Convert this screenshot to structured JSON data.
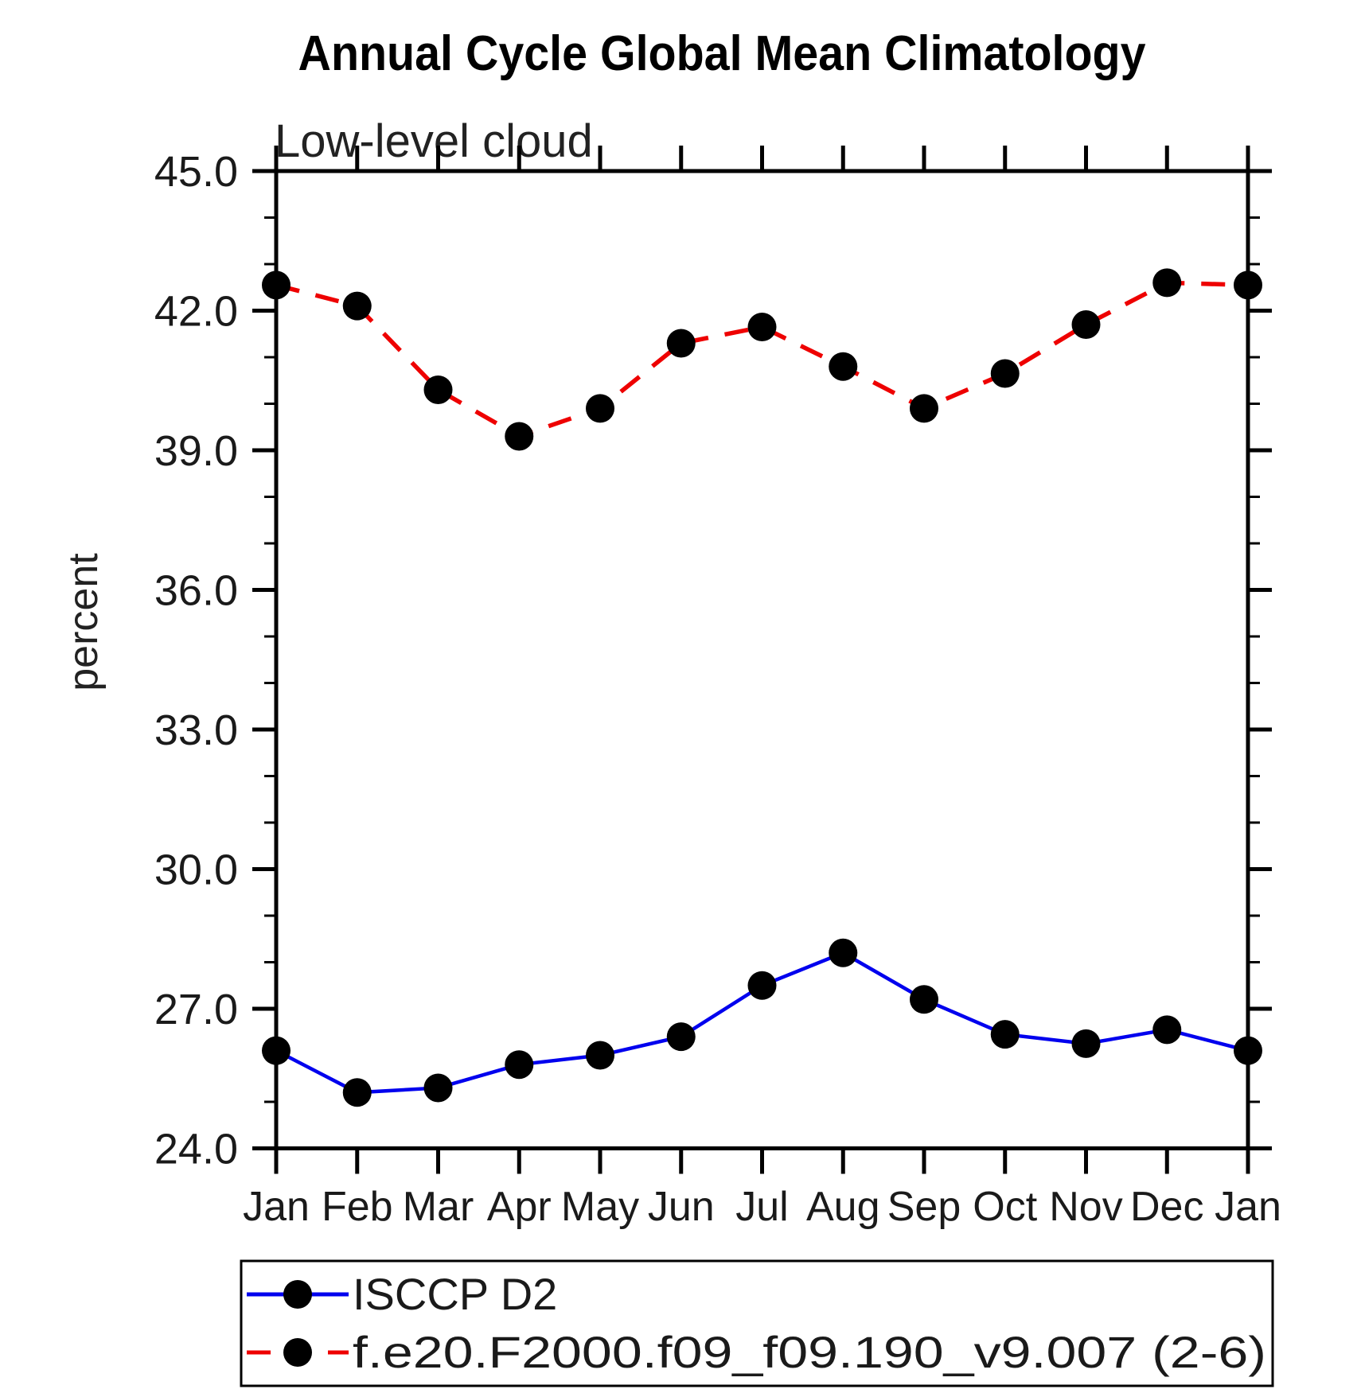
{
  "title": "Annual Cycle Global Mean Climatology",
  "subtitle": "Low-level cloud",
  "ylabel": "percent",
  "chart_data": {
    "type": "line",
    "x_categories": [
      "Jan",
      "Feb",
      "Mar",
      "Apr",
      "May",
      "Jun",
      "Jul",
      "Aug",
      "Sep",
      "Oct",
      "Nov",
      "Dec",
      "Jan"
    ],
    "series": [
      {
        "name": "ISCCP D2",
        "color": "#0000ee",
        "line_style": "solid",
        "marker": "filled-circle",
        "marker_color": "#000000",
        "values": [
          26.1,
          25.2,
          25.3,
          25.8,
          26.0,
          26.4,
          27.5,
          28.2,
          27.2,
          26.45,
          26.25,
          26.55,
          26.1
        ]
      },
      {
        "name": "f.e20.F2000.f09_f09.190_v9.007 (2-6)",
        "color": "#ee0000",
        "line_style": "dashed",
        "marker": "filled-circle",
        "marker_color": "#000000",
        "values": [
          42.55,
          42.1,
          40.3,
          39.3,
          39.9,
          41.3,
          41.65,
          40.8,
          39.9,
          40.65,
          41.7,
          42.6,
          42.55
        ]
      }
    ],
    "ylim": [
      24,
      45
    ],
    "yticks_major": [
      24.0,
      27.0,
      30.0,
      33.0,
      36.0,
      39.0,
      42.0,
      45.0
    ],
    "ytick_minor_step": 1,
    "ytick_label_decimals": 1,
    "grid": false,
    "axis_color": "#000000",
    "legend_position": "bottom"
  }
}
